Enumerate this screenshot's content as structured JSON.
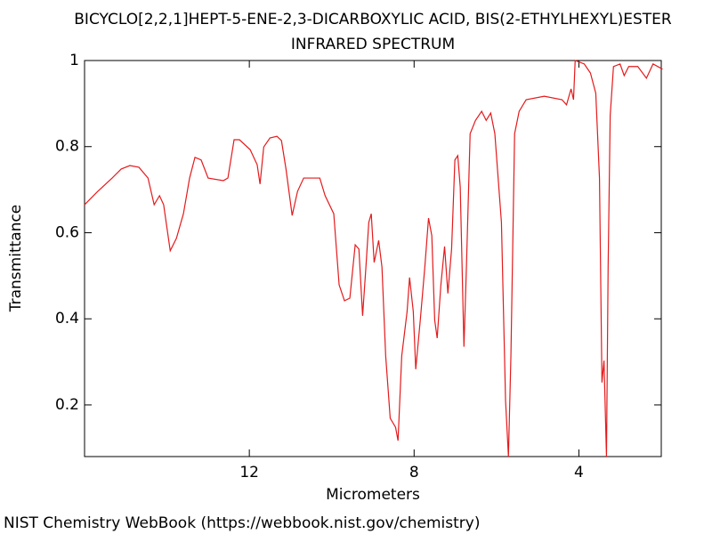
{
  "chart_data": {
    "type": "line",
    "title": "BICYCLO[2,2,1]HEPT-5-ENE-2,3-DICARBOXYLIC ACID, BIS(2-ETHYLHEXYL)ESTER",
    "subtitle": "INFRARED SPECTRUM",
    "x_label": "Micrometers",
    "y_label": "Transmittance",
    "xlim": [
      16,
      2
    ],
    "ylim": [
      0.08,
      1
    ],
    "xticks": [
      12,
      8,
      4
    ],
    "yticks": [
      0.2,
      0.4,
      0.6,
      0.8,
      1
    ],
    "grid": false,
    "series": [
      {
        "color": "#e41a1c",
        "x": [
          16.0,
          15.68,
          15.33,
          15.11,
          14.9,
          14.68,
          14.46,
          14.31,
          14.18,
          14.08,
          13.92,
          13.77,
          13.6,
          13.45,
          13.32,
          13.17,
          13.0,
          12.63,
          12.52,
          12.37,
          12.24,
          11.98,
          11.81,
          11.74,
          11.65,
          11.5,
          11.33,
          11.22,
          11.11,
          10.96,
          10.83,
          10.68,
          10.46,
          10.29,
          10.16,
          9.95,
          9.82,
          9.69,
          9.56,
          9.43,
          9.34,
          9.25,
          9.17,
          9.1,
          9.04,
          8.97,
          8.86,
          8.78,
          8.69,
          8.58,
          8.45,
          8.39,
          8.3,
          8.17,
          8.11,
          8.02,
          7.96,
          7.85,
          7.74,
          7.65,
          7.57,
          7.5,
          7.44,
          7.35,
          7.26,
          7.18,
          7.09,
          7.01,
          6.94,
          6.88,
          6.79,
          6.73,
          6.64,
          6.51,
          6.36,
          6.25,
          6.14,
          6.04,
          5.88,
          5.78,
          5.71,
          5.65,
          5.56,
          5.45,
          5.28,
          4.84,
          4.41,
          4.3,
          4.19,
          4.13,
          4.09,
          3.87,
          3.72,
          3.59,
          3.5,
          3.44,
          3.39,
          3.33,
          3.29,
          3.24,
          3.16,
          3.0,
          2.9,
          2.79,
          2.57,
          2.36,
          2.2,
          1.97
        ],
        "values": [
          0.665,
          0.696,
          0.727,
          0.748,
          0.756,
          0.752,
          0.727,
          0.665,
          0.686,
          0.665,
          0.558,
          0.587,
          0.644,
          0.727,
          0.775,
          0.769,
          0.727,
          0.721,
          0.727,
          0.816,
          0.816,
          0.793,
          0.758,
          0.713,
          0.799,
          0.82,
          0.824,
          0.814,
          0.748,
          0.64,
          0.696,
          0.727,
          0.727,
          0.727,
          0.686,
          0.644,
          0.479,
          0.442,
          0.448,
          0.572,
          0.562,
          0.407,
          0.52,
          0.624,
          0.644,
          0.531,
          0.582,
          0.52,
          0.314,
          0.169,
          0.148,
          0.117,
          0.314,
          0.417,
          0.496,
          0.417,
          0.283,
          0.397,
          0.52,
          0.634,
          0.593,
          0.397,
          0.355,
          0.479,
          0.568,
          0.459,
          0.562,
          0.769,
          0.779,
          0.706,
          0.335,
          0.52,
          0.83,
          0.861,
          0.882,
          0.861,
          0.878,
          0.83,
          0.624,
          0.21,
          0.08,
          0.314,
          0.83,
          0.882,
          0.909,
          0.917,
          0.909,
          0.897,
          0.934,
          0.909,
          1.0,
          0.992,
          0.971,
          0.924,
          0.727,
          0.252,
          0.303,
          0.08,
          0.52,
          0.872,
          0.986,
          0.992,
          0.965,
          0.986,
          0.986,
          0.959,
          0.992,
          0.98
        ]
      }
    ]
  },
  "footer": "NIST Chemistry WebBook (https://webbook.nist.gov/chemistry)"
}
